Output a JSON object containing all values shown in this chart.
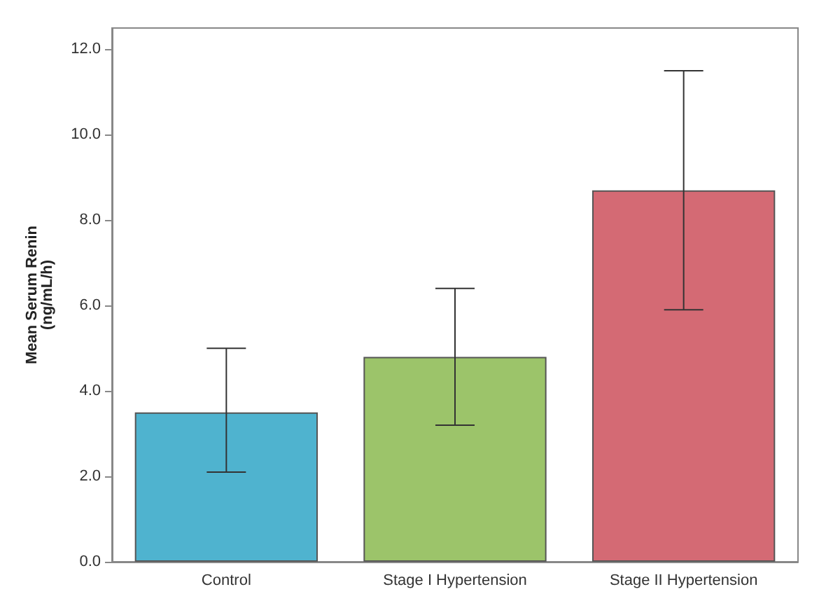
{
  "chart_data": {
    "type": "bar",
    "ylabel": "Mean Serum Renin\n(ng/mL/h)",
    "categories": [
      "Control",
      "Stage I Hypertension",
      "Stage II Hypertension"
    ],
    "values": [
      3.5,
      4.8,
      8.7
    ],
    "colors": [
      "#4fb3cf",
      "#9cc46a",
      "#d46a74"
    ],
    "errors": [
      [
        2.1,
        5.0
      ],
      [
        3.2,
        6.4
      ],
      [
        5.9,
        11.5
      ]
    ],
    "ylim": [
      0,
      12.5
    ],
    "yticks": [
      {
        "value": 0,
        "label": "0.0"
      },
      {
        "value": 2,
        "label": "2.0"
      },
      {
        "value": 4,
        "label": "4.0"
      },
      {
        "value": 6,
        "label": "6.0"
      },
      {
        "value": 8,
        "label": "8.0"
      },
      {
        "value": 10,
        "label": "10.0"
      },
      {
        "value": 12,
        "label": "12.0"
      }
    ],
    "grid": false
  }
}
